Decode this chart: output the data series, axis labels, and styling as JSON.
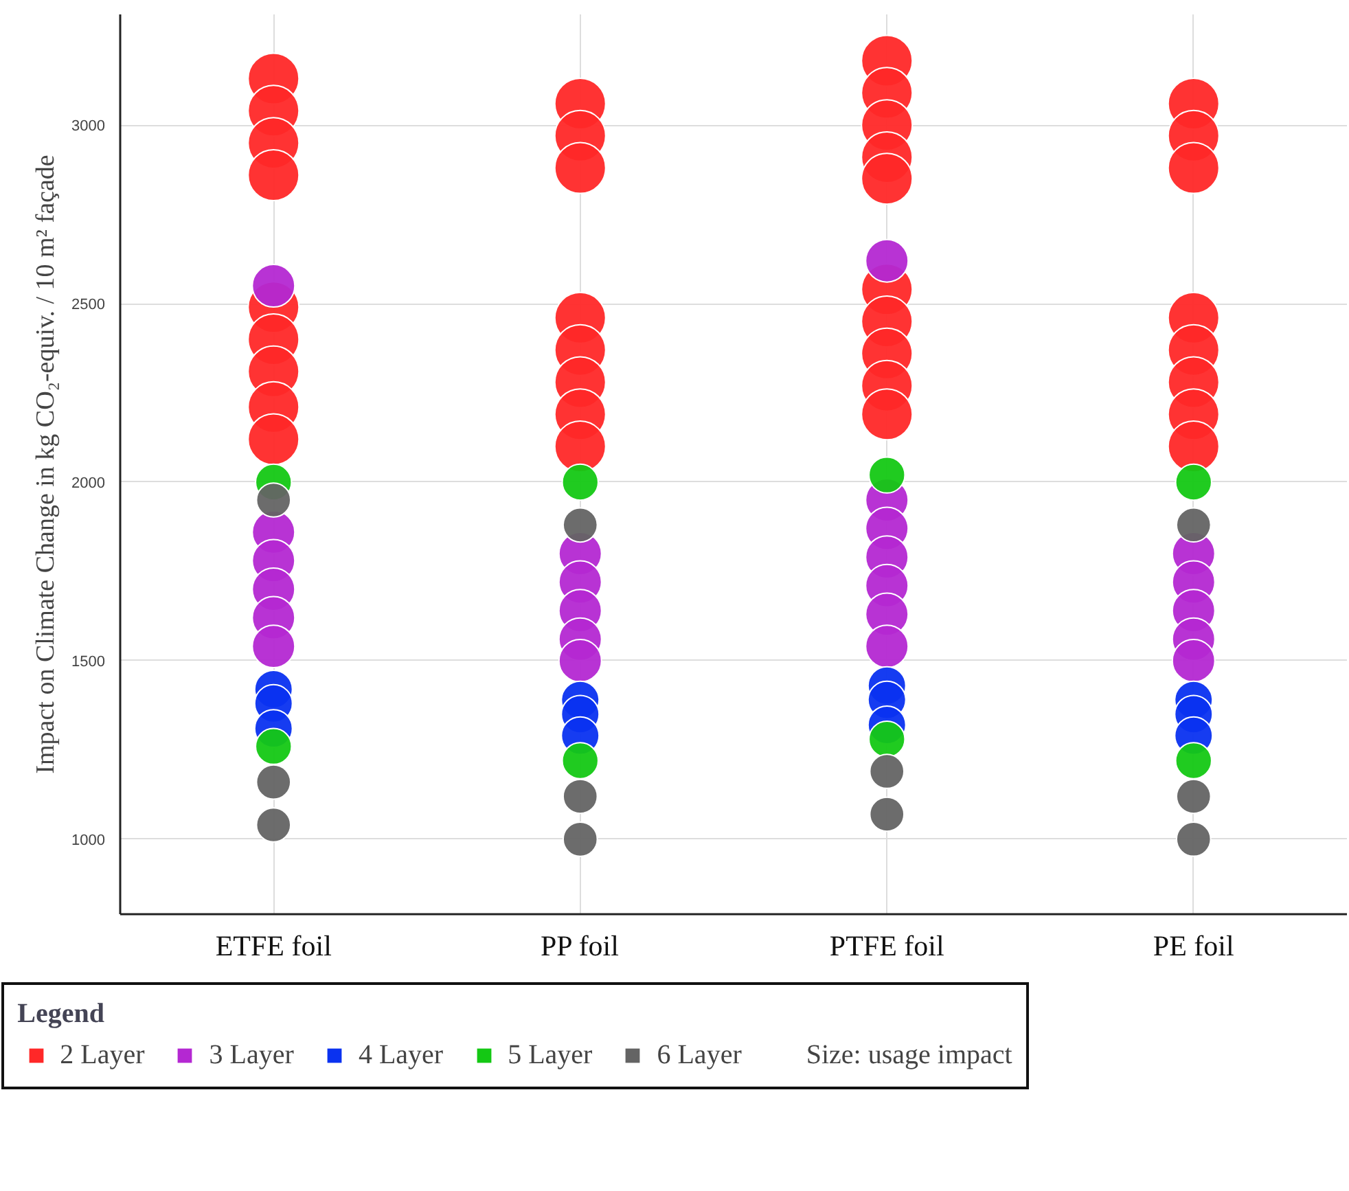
{
  "chart_data": {
    "type": "bubble",
    "ylabel": "Impact on Climate Change in kg CO₂-equiv. / 10 m² façade",
    "categories": [
      "ETFE foil",
      "PP foil",
      "PTFE foil",
      "PE foil"
    ],
    "ylim": [
      790,
      3310
    ],
    "yticks": [
      1000,
      1500,
      2000,
      2500,
      3000
    ],
    "grid": true,
    "legend": "bottom",
    "legend_title": "Legend",
    "annotations": [
      "Size: usage impact"
    ],
    "series": [
      {
        "name": "2 Layer",
        "color": "#ff2828",
        "x": [
          "ETFE foil",
          "ETFE foil",
          "ETFE foil",
          "ETFE foil",
          "ETFE foil",
          "ETFE foil",
          "ETFE foil",
          "ETFE foil",
          "ETFE foil",
          "PP foil",
          "PP foil",
          "PP foil",
          "PP foil",
          "PP foil",
          "PP foil",
          "PP foil",
          "PP foil",
          "PTFE foil",
          "PTFE foil",
          "PTFE foil",
          "PTFE foil",
          "PTFE foil",
          "PTFE foil",
          "PTFE foil",
          "PTFE foil",
          "PTFE foil",
          "PTFE foil",
          "PE foil",
          "PE foil",
          "PE foil",
          "PE foil",
          "PE foil",
          "PE foil",
          "PE foil",
          "PE foil"
        ],
        "values": [
          3130,
          3040,
          2950,
          2860,
          2490,
          2400,
          2310,
          2210,
          2120,
          3060,
          2970,
          2880,
          2460,
          2370,
          2280,
          2190,
          2100,
          3180,
          3090,
          3000,
          2910,
          2850,
          2540,
          2450,
          2360,
          2270,
          2190,
          3060,
          2970,
          2880,
          2460,
          2370,
          2280,
          2190,
          2100
        ],
        "sizes": [
          1,
          1,
          1,
          1,
          1,
          1,
          1,
          1,
          1,
          1,
          1,
          1,
          1,
          1,
          1,
          1,
          1,
          1,
          1,
          1,
          1,
          1,
          1,
          1,
          1,
          1,
          1,
          1,
          1,
          1,
          1,
          1,
          1,
          1,
          1
        ]
      },
      {
        "name": "3 Layer",
        "color": "#b428d2",
        "x": [
          "ETFE foil",
          "ETFE foil",
          "ETFE foil",
          "ETFE foil",
          "ETFE foil",
          "ETFE foil",
          "PP foil",
          "PP foil",
          "PP foil",
          "PP foil",
          "PP foil",
          "PTFE foil",
          "PTFE foil",
          "PTFE foil",
          "PTFE foil",
          "PTFE foil",
          "PTFE foil",
          "PTFE foil",
          "PE foil",
          "PE foil",
          "PE foil",
          "PE foil",
          "PE foil"
        ],
        "values": [
          2550,
          1860,
          1780,
          1700,
          1620,
          1540,
          1800,
          1720,
          1640,
          1560,
          1500,
          2620,
          1950,
          1870,
          1790,
          1710,
          1630,
          1540,
          1800,
          1720,
          1640,
          1560,
          1500
        ],
        "sizes": [
          0.7,
          0.7,
          0.7,
          0.7,
          0.7,
          0.7,
          0.7,
          0.7,
          0.7,
          0.7,
          0.7,
          0.7,
          0.7,
          0.7,
          0.7,
          0.7,
          0.7,
          0.7,
          0.7,
          0.7,
          0.7,
          0.7,
          0.7
        ]
      },
      {
        "name": "4 Layer",
        "color": "#0a32f0",
        "x": [
          "ETFE foil",
          "ETFE foil",
          "ETFE foil",
          "PP foil",
          "PP foil",
          "PP foil",
          "PTFE foil",
          "PTFE foil",
          "PTFE foil",
          "PE foil",
          "PE foil",
          "PE foil"
        ],
        "values": [
          1420,
          1380,
          1310,
          1390,
          1350,
          1290,
          1430,
          1390,
          1320,
          1390,
          1350,
          1290
        ],
        "sizes": [
          0.55,
          0.55,
          0.55,
          0.55,
          0.55,
          0.55,
          0.55,
          0.55,
          0.55,
          0.55,
          0.55,
          0.55
        ]
      },
      {
        "name": "5 Layer",
        "color": "#14c814",
        "x": [
          "ETFE foil",
          "ETFE foil",
          "PP foil",
          "PP foil",
          "PTFE foil",
          "PTFE foil",
          "PE foil",
          "PE foil"
        ],
        "values": [
          2000,
          1260,
          2000,
          1220,
          2020,
          1280,
          2000,
          1220
        ],
        "sizes": [
          0.5,
          0.5,
          0.5,
          0.5,
          0.5,
          0.5,
          0.5,
          0.5
        ]
      },
      {
        "name": "6 Layer",
        "color": "#646464",
        "x": [
          "ETFE foil",
          "ETFE foil",
          "ETFE foil",
          "PP foil",
          "PP foil",
          "PP foil",
          "PTFE foil",
          "PTFE foil",
          "PE foil",
          "PE foil",
          "PE foil"
        ],
        "values": [
          1950,
          1160,
          1040,
          1880,
          1120,
          1000,
          1190,
          1070,
          1880,
          1120,
          1000
        ],
        "sizes": [
          0.45,
          0.45,
          0.45,
          0.45,
          0.45,
          0.45,
          0.45,
          0.45,
          0.45,
          0.45,
          0.45
        ]
      }
    ]
  }
}
